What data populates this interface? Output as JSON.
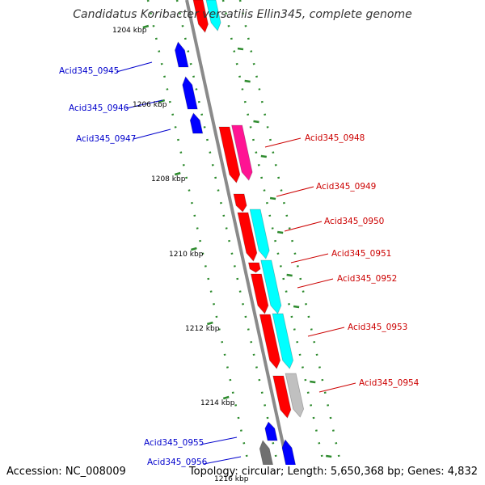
{
  "title": "Candidatus Koribacter versatilis Ellin345, complete genome",
  "footer": {
    "accession": "Accession: NC_008009",
    "summary": "Topology: circular; Length: 5,650,368 bp; Genes: 4,832"
  },
  "colors": {
    "backbone": "#8a8a8a",
    "tick": "#2e8b2e",
    "left_label": "#0000cc",
    "right_label": "#cc0000",
    "red": "#ff0000",
    "cyan": "#00ffff",
    "blue": "#0000ff",
    "magenta": "#ff1493",
    "gray": "#c0c0c0",
    "darkgray": "#707070"
  },
  "scale_labels": [
    {
      "kbp": 1204,
      "text": "1204 kbp"
    },
    {
      "kbp": 1206,
      "text": "1206 kbp"
    },
    {
      "kbp": 1208,
      "text": "1208 kbp"
    },
    {
      "kbp": 1210,
      "text": "1210 kbp"
    },
    {
      "kbp": 1212,
      "text": "1212 kbp"
    },
    {
      "kbp": 1214,
      "text": "1214 kbp"
    },
    {
      "kbp": 1216,
      "text": "1216 kbp"
    }
  ],
  "gene_labels_left": [
    "Acid345_0945",
    "Acid345_0946",
    "Acid345_0947",
    "Acid345_0955",
    "Acid345_0956"
  ],
  "gene_labels_right": [
    "Acid345_0948",
    "Acid345_0949",
    "Acid345_0950",
    "Acid345_0951",
    "Acid345_0952",
    "Acid345_0953",
    "Acid345_0954"
  ]
}
